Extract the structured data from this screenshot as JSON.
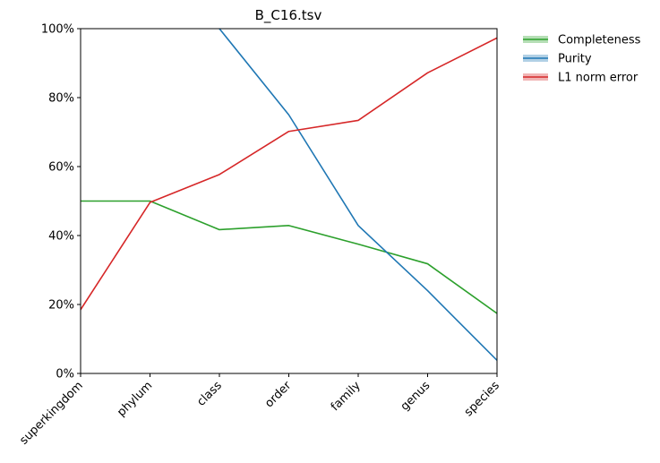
{
  "chart_data": {
    "type": "line",
    "title": "B_C16.tsv",
    "xlabel": "",
    "ylabel": "",
    "categories": [
      "superkingdom",
      "phylum",
      "class",
      "order",
      "family",
      "genus",
      "species"
    ],
    "ylim": [
      0,
      100
    ],
    "yticks": [
      0,
      20,
      40,
      60,
      80,
      100
    ],
    "ytick_labels": [
      "0%",
      "20%",
      "40%",
      "60%",
      "80%",
      "100%"
    ],
    "grid": false,
    "legend_position": "outside-top-right",
    "series": [
      {
        "name": "Completeness",
        "color": "#2ca02c",
        "values": [
          50.0,
          50.0,
          41.7,
          42.9,
          37.5,
          31.8,
          17.4
        ]
      },
      {
        "name": "Purity",
        "color": "#1f77b4",
        "values": [
          null,
          null,
          100.0,
          75.0,
          42.9,
          24.0,
          3.8
        ]
      },
      {
        "name": "L1 norm error",
        "color": "#d62728",
        "values": [
          18.5,
          49.6,
          57.7,
          70.2,
          73.4,
          87.2,
          97.3
        ]
      }
    ]
  }
}
